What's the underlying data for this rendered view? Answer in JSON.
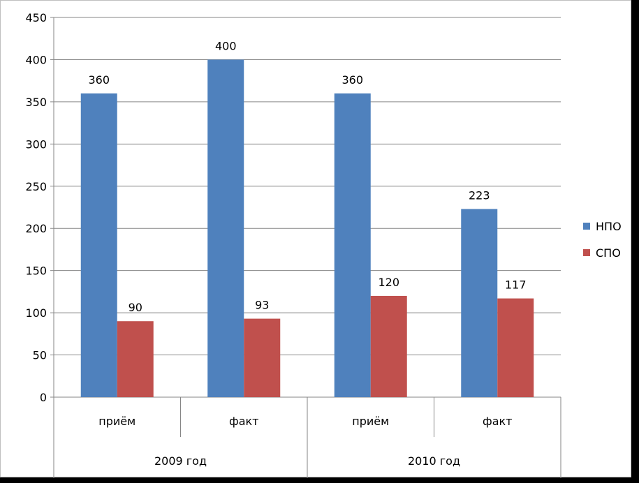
{
  "chart_data": {
    "type": "bar",
    "groups": [
      {
        "label": "2009 год",
        "categories": [
          "приём",
          "факт"
        ]
      },
      {
        "label": "2010 год",
        "categories": [
          "приём",
          "факт"
        ]
      }
    ],
    "categories": [
      "приём",
      "факт",
      "приём",
      "факт"
    ],
    "series": [
      {
        "name": "НПО",
        "color": "#4f81bd",
        "values": [
          360,
          400,
          360,
          223
        ]
      },
      {
        "name": "СПО",
        "color": "#c0504d",
        "values": [
          90,
          93,
          120,
          117
        ]
      }
    ],
    "ylim": [
      0,
      450
    ],
    "yticks": [
      0,
      50,
      100,
      150,
      200,
      250,
      300,
      350,
      400,
      450
    ],
    "grid": true,
    "legend": "right",
    "title": "",
    "xlabel": "",
    "ylabel": ""
  }
}
